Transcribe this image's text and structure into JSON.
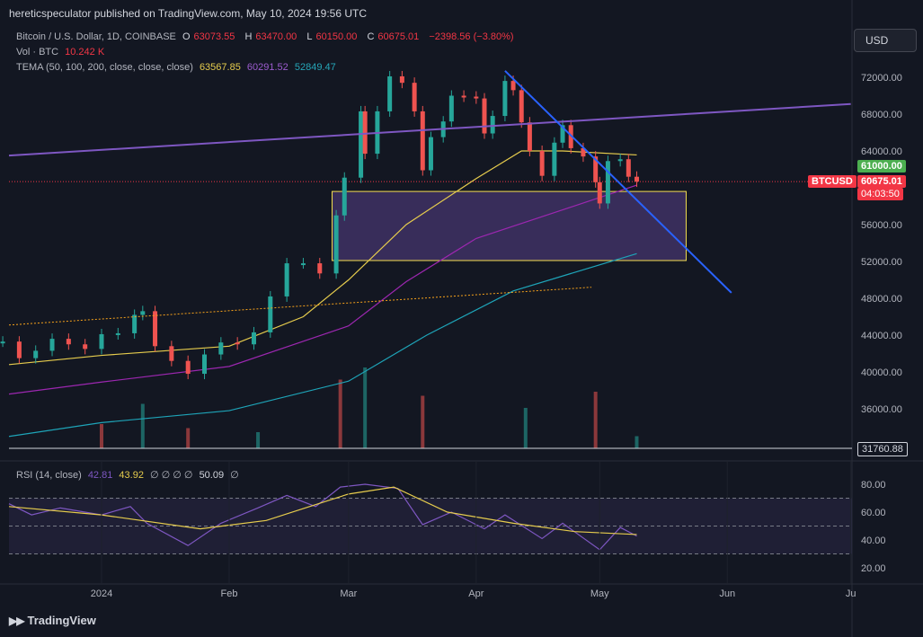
{
  "header": "hereticspeculator published on TradingView.com, May 10, 2024 19:56 UTC",
  "legend": {
    "symbol": "Bitcoin / U.S. Dollar, 1D, COINBASE",
    "o_label": "O",
    "o_value": "63073.55",
    "h_label": "H",
    "h_value": "63470.00",
    "l_label": "L",
    "l_value": "60150.00",
    "c_label": "C",
    "c_value": "60675.01",
    "change": "−2398.56 (−3.80%)",
    "vol_label": "Vol · BTC",
    "vol_value": "10.242 K",
    "tema_label": "TEMA (50, 100, 200, close, close, close)",
    "tema_1": "63567.85",
    "tema_2": "60291.52",
    "tema_3": "52849.47"
  },
  "rsi_legend": {
    "label": "RSI (14, close)",
    "v1": "42.81",
    "v2": "43.92",
    "empties": "∅ ∅ ∅ ∅",
    "v3": "50.09",
    "v4": "∅"
  },
  "currency_button": "USD",
  "price_tags": {
    "green": "61000.00",
    "symbol": "BTCUSD",
    "price": "60675.01",
    "countdown": "04:03:50",
    "volume_line": "31760.88"
  },
  "footer_brand": "TradingView",
  "colors": {
    "background": "#131722",
    "up": "#26a69a",
    "down": "#ef5350",
    "tema_fast": "#e6cc4d",
    "tema_mid": "#9c27b0",
    "tema_slow": "#1ea4b8",
    "trend_purple": "#7e57c2",
    "trend_blue": "#2962ff",
    "trend_orange": "#f7a21b",
    "zone_fill": "rgba(126, 87, 194, 0.35)",
    "zone_border": "#f5e050",
    "rsi_line": "#7e57c2",
    "rsi_ma": "#e6cc4d"
  },
  "chart_data": {
    "type": "line",
    "price_axis_ticks": [
      "72000.00",
      "68000.00",
      "64000.00",
      "60000.00",
      "56000.00",
      "52000.00",
      "48000.00",
      "44000.00",
      "40000.00",
      "36000.00"
    ],
    "rsi_axis_ticks": [
      "80.00",
      "60.00",
      "40.00",
      "20.00"
    ],
    "time_axis_ticks": [
      "2024",
      "Feb",
      "Mar",
      "Apr",
      "May",
      "Jun",
      "Ju"
    ],
    "time_axis_dates": [
      "2024-01-01",
      "2024-02-01",
      "2024-03-01",
      "2024-04-01",
      "2024-05-01",
      "2024-06-01",
      "2024-07-01"
    ],
    "price_series": [
      {
        "date": "2023-12-08",
        "close": 43300
      },
      {
        "date": "2023-12-12",
        "close": 41500
      },
      {
        "date": "2023-12-16",
        "close": 42300
      },
      {
        "date": "2023-12-20",
        "close": 43600
      },
      {
        "date": "2023-12-24",
        "close": 43000
      },
      {
        "date": "2023-12-28",
        "close": 42500
      },
      {
        "date": "2024-01-01",
        "close": 44100
      },
      {
        "date": "2024-01-05",
        "close": 44200
      },
      {
        "date": "2024-01-09",
        "close": 46200
      },
      {
        "date": "2024-01-11",
        "close": 46600
      },
      {
        "date": "2024-01-14",
        "close": 42800
      },
      {
        "date": "2024-01-18",
        "close": 41200
      },
      {
        "date": "2024-01-22",
        "close": 39800
      },
      {
        "date": "2024-01-26",
        "close": 41900
      },
      {
        "date": "2024-01-30",
        "close": 43200
      },
      {
        "date": "2024-02-03",
        "close": 43000
      },
      {
        "date": "2024-02-07",
        "close": 44300
      },
      {
        "date": "2024-02-11",
        "close": 48200
      },
      {
        "date": "2024-02-15",
        "close": 51800
      },
      {
        "date": "2024-02-19",
        "close": 51800
      },
      {
        "date": "2024-02-23",
        "close": 50700
      },
      {
        "date": "2024-02-27",
        "close": 57000
      },
      {
        "date": "2024-02-29",
        "close": 61100
      },
      {
        "date": "2024-03-04",
        "close": 68300
      },
      {
        "date": "2024-03-05",
        "close": 63700
      },
      {
        "date": "2024-03-08",
        "close": 68300
      },
      {
        "date": "2024-03-11",
        "close": 72100
      },
      {
        "date": "2024-03-14",
        "close": 71400
      },
      {
        "date": "2024-03-17",
        "close": 68300
      },
      {
        "date": "2024-03-19",
        "close": 61900
      },
      {
        "date": "2024-03-21",
        "close": 65500
      },
      {
        "date": "2024-03-24",
        "close": 67200
      },
      {
        "date": "2024-03-26",
        "close": 70000
      },
      {
        "date": "2024-03-29",
        "close": 69900
      },
      {
        "date": "2024-04-01",
        "close": 69700
      },
      {
        "date": "2024-04-03",
        "close": 65900
      },
      {
        "date": "2024-04-05",
        "close": 67800
      },
      {
        "date": "2024-04-08",
        "close": 71600
      },
      {
        "date": "2024-04-10",
        "close": 70600
      },
      {
        "date": "2024-04-12",
        "close": 67100
      },
      {
        "date": "2024-04-14",
        "close": 64000
      },
      {
        "date": "2024-04-17",
        "close": 61300
      },
      {
        "date": "2024-04-20",
        "close": 64900
      },
      {
        "date": "2024-04-22",
        "close": 66800
      },
      {
        "date": "2024-04-24",
        "close": 64300
      },
      {
        "date": "2024-04-27",
        "close": 63400
      },
      {
        "date": "2024-04-30",
        "close": 60600
      },
      {
        "date": "2024-05-01",
        "close": 58300
      },
      {
        "date": "2024-05-03",
        "close": 62900
      },
      {
        "date": "2024-05-06",
        "close": 63100
      },
      {
        "date": "2024-05-08",
        "close": 61200
      },
      {
        "date": "2024-05-10",
        "close": 60675
      }
    ],
    "tema_50": [
      {
        "date": "2023-12-08",
        "value": 40800
      },
      {
        "date": "2024-01-01",
        "value": 41800
      },
      {
        "date": "2024-02-01",
        "value": 42800
      },
      {
        "date": "2024-02-19",
        "value": 46000
      },
      {
        "date": "2024-03-01",
        "value": 50000
      },
      {
        "date": "2024-03-15",
        "value": 56000
      },
      {
        "date": "2024-04-01",
        "value": 61000
      },
      {
        "date": "2024-04-12",
        "value": 64000
      },
      {
        "date": "2024-04-22",
        "value": 64000
      },
      {
        "date": "2024-05-10",
        "value": 63567.85
      }
    ],
    "tema_100": [
      {
        "date": "2023-12-08",
        "value": 37600
      },
      {
        "date": "2024-01-01",
        "value": 38900
      },
      {
        "date": "2024-02-01",
        "value": 40600
      },
      {
        "date": "2024-03-01",
        "value": 45000
      },
      {
        "date": "2024-03-15",
        "value": 49800
      },
      {
        "date": "2024-04-01",
        "value": 54500
      },
      {
        "date": "2024-04-22",
        "value": 57600
      },
      {
        "date": "2024-05-10",
        "value": 60291.52
      }
    ],
    "tema_200": [
      {
        "date": "2023-12-08",
        "value": 33000
      },
      {
        "date": "2024-01-01",
        "value": 34500
      },
      {
        "date": "2024-02-01",
        "value": 35800
      },
      {
        "date": "2024-03-01",
        "value": 39000
      },
      {
        "date": "2024-03-20",
        "value": 44000
      },
      {
        "date": "2024-04-10",
        "value": 48800
      },
      {
        "date": "2024-05-10",
        "value": 52849.47
      }
    ],
    "volume": [
      {
        "date": "2024-01-01",
        "value": 0.3
      },
      {
        "date": "2024-01-11",
        "value": 0.55
      },
      {
        "date": "2024-01-22",
        "value": 0.25
      },
      {
        "date": "2024-02-08",
        "value": 0.2
      },
      {
        "date": "2024-02-28",
        "value": 0.85
      },
      {
        "date": "2024-03-05",
        "value": 1.0
      },
      {
        "date": "2024-03-19",
        "value": 0.65
      },
      {
        "date": "2024-04-13",
        "value": 0.5
      },
      {
        "date": "2024-04-30",
        "value": 0.7
      },
      {
        "date": "2024-05-10",
        "value": 0.15
      }
    ],
    "rsi": [
      {
        "date": "2023-12-08",
        "value": 66
      },
      {
        "date": "2023-12-15",
        "value": 58
      },
      {
        "date": "2023-12-22",
        "value": 63
      },
      {
        "date": "2024-01-01",
        "value": 58
      },
      {
        "date": "2024-01-08",
        "value": 64
      },
      {
        "date": "2024-01-12",
        "value": 52
      },
      {
        "date": "2024-01-22",
        "value": 36
      },
      {
        "date": "2024-01-30",
        "value": 52
      },
      {
        "date": "2024-02-08",
        "value": 63
      },
      {
        "date": "2024-02-15",
        "value": 72
      },
      {
        "date": "2024-02-22",
        "value": 64
      },
      {
        "date": "2024-02-28",
        "value": 78
      },
      {
        "date": "2024-03-05",
        "value": 80
      },
      {
        "date": "2024-03-13",
        "value": 77
      },
      {
        "date": "2024-03-19",
        "value": 51
      },
      {
        "date": "2024-03-26",
        "value": 60
      },
      {
        "date": "2024-04-03",
        "value": 48
      },
      {
        "date": "2024-04-08",
        "value": 58
      },
      {
        "date": "2024-04-17",
        "value": 41
      },
      {
        "date": "2024-04-22",
        "value": 52
      },
      {
        "date": "2024-05-01",
        "value": 33
      },
      {
        "date": "2024-05-06",
        "value": 49
      },
      {
        "date": "2024-05-10",
        "value": 42.81
      }
    ],
    "rsi_ma": [
      {
        "date": "2023-12-08",
        "value": 64
      },
      {
        "date": "2024-01-01",
        "value": 58
      },
      {
        "date": "2024-01-25",
        "value": 48
      },
      {
        "date": "2024-02-10",
        "value": 54
      },
      {
        "date": "2024-03-01",
        "value": 73
      },
      {
        "date": "2024-03-12",
        "value": 78
      },
      {
        "date": "2024-03-25",
        "value": 60
      },
      {
        "date": "2024-04-10",
        "value": 52
      },
      {
        "date": "2024-04-25",
        "value": 46
      },
      {
        "date": "2024-05-10",
        "value": 43.92
      }
    ],
    "annotations": {
      "purple_trendline": [
        {
          "date": "2023-12-08",
          "price": 63500
        },
        {
          "date": "2024-07-01",
          "price": 69100
        }
      ],
      "blue_trendline": [
        {
          "date": "2024-04-08",
          "price": 72700
        },
        {
          "date": "2024-06-02",
          "price": 48600
        }
      ],
      "orange_trendline": [
        {
          "date": "2023-12-08",
          "price": 45100
        },
        {
          "date": "2024-04-29",
          "price": 49200
        }
      ],
      "demand_zone": {
        "from": "2024-02-26",
        "to": "2024-05-22",
        "top": 59600,
        "bottom": 52100
      },
      "volume_baseline": 31760.88
    }
  }
}
